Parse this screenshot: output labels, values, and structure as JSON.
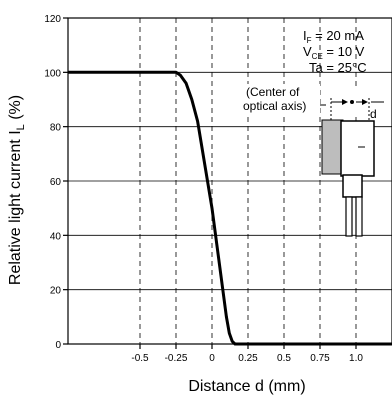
{
  "chart_data": {
    "type": "line",
    "xlabel": "Distance d (mm)",
    "ylabel": "Relative light current  I",
    "ylabel_sub": "L",
    "ylabel_unit": " (%)",
    "xlim": [
      -1.0,
      1.25
    ],
    "ylim": [
      0,
      120
    ],
    "x_ticks": [
      -0.5,
      -0.25,
      0,
      0.25,
      0.5,
      0.75,
      1.0
    ],
    "x_tick_labels": [
      "-0.5",
      "-0.25",
      "0",
      "0.25",
      "0.5",
      "0.75",
      "1.0"
    ],
    "y_ticks": [
      0,
      20,
      40,
      60,
      80,
      100,
      120
    ],
    "y_tick_labels": [
      "0",
      "20",
      "40",
      "60",
      "80",
      "100",
      "120"
    ],
    "grid": "dashed",
    "series": [
      {
        "x": [
          -1.0,
          -0.25,
          -0.22,
          -0.18,
          -0.14,
          -0.1,
          0.0,
          0.1,
          0.12,
          0.14,
          0.16,
          1.25
        ],
        "y": [
          100,
          100,
          99,
          96,
          90,
          82,
          50,
          10,
          4,
          1,
          0,
          0
        ]
      }
    ],
    "conditions": [
      {
        "main": "I",
        "sub": "F",
        "rest": " = 20 mA"
      },
      {
        "main": "V",
        "sub": "CE",
        "rest": " = 10 V"
      },
      {
        "main": "Ta = 25°C",
        "sub": "",
        "rest": ""
      }
    ],
    "annotation": [
      "(Center of",
      "optical axis)"
    ],
    "inset_label": "d"
  }
}
